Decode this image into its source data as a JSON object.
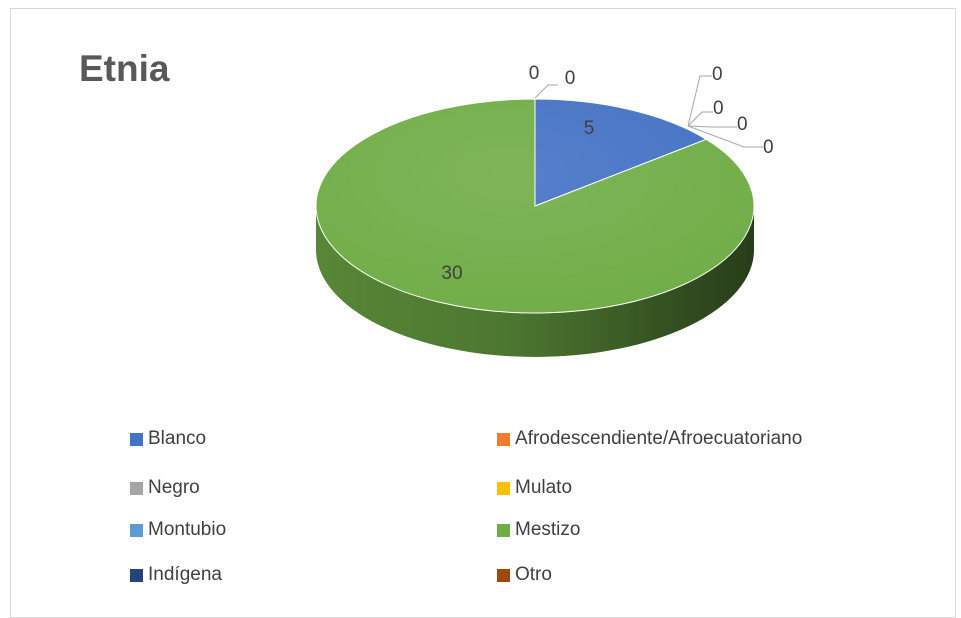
{
  "chart_data": {
    "type": "pie",
    "title": "Etnia",
    "categories": [
      "Blanco",
      "Afrodescendiente/Afroecuatoriano",
      "Negro",
      "Mulato",
      "Montubio",
      "Mestizo",
      "Indígena",
      "Otro"
    ],
    "values": [
      5,
      0,
      0,
      0,
      0,
      30,
      0,
      0
    ],
    "data_labels": [
      "5",
      "0",
      "0",
      "0",
      "0",
      "30",
      "0",
      "0"
    ],
    "colors": [
      "#4472C4",
      "#ED7D31",
      "#A5A5A5",
      "#FFC000",
      "#5B9BD5",
      "#70AD47",
      "#264478",
      "#9E480E"
    ],
    "style": "3d-pie",
    "legend_position": "bottom"
  }
}
